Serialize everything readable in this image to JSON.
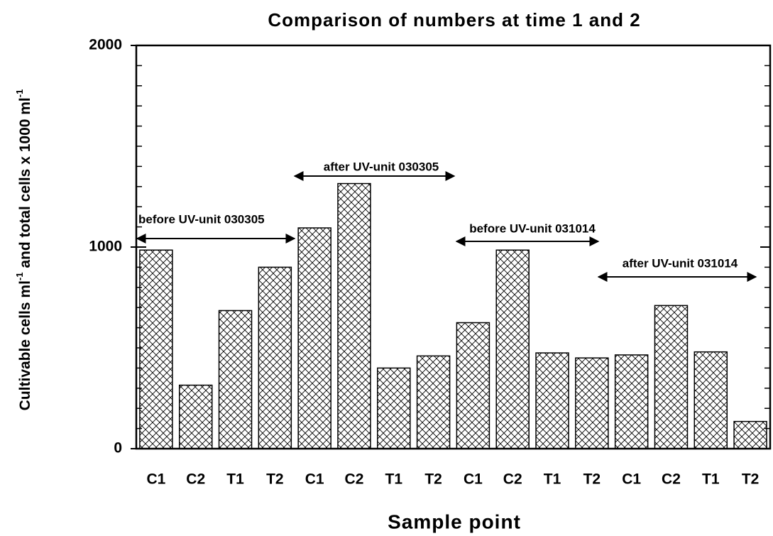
{
  "chart_data": {
    "type": "bar",
    "title": "Comparison of numbers at time 1 and 2",
    "xlabel": "Sample point",
    "ylabel": [
      "Cultivable cells ml",
      "-1",
      " and total cells x 1000 ml",
      "-1"
    ],
    "categories": [
      "C1",
      "C2",
      "T1",
      "T2",
      "C1",
      "C2",
      "T1",
      "T2",
      "C1",
      "C2",
      "T1",
      "T2",
      "C1",
      "C2",
      "T1",
      "T2"
    ],
    "values": [
      985,
      315,
      685,
      900,
      1095,
      1315,
      400,
      460,
      625,
      985,
      475,
      450,
      465,
      710,
      480,
      135
    ],
    "color": "#000000",
    "ylim": [
      0,
      2000
    ],
    "yticks": [
      0,
      1000,
      2000
    ],
    "annotations": [
      "before UV-unit 030305",
      "after UV-unit 030305",
      "before UV-unit 031014",
      "after UV-unit 031014"
    ]
  }
}
